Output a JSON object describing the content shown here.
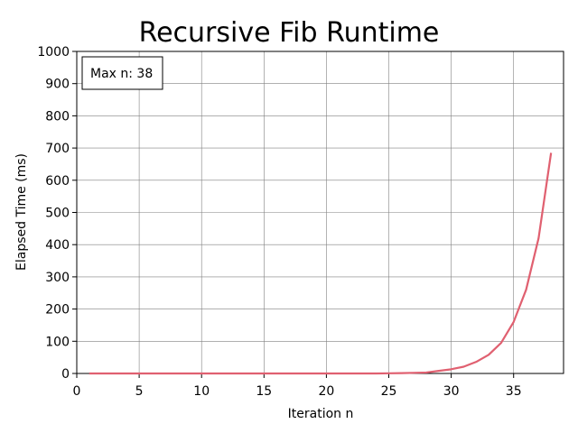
{
  "chart_data": {
    "type": "line",
    "title": "Recursive Fib Runtime",
    "xlabel": "Iteration n",
    "ylabel": "Elapsed Time (ms)",
    "xlim": [
      0,
      39
    ],
    "ylim": [
      0,
      1000
    ],
    "xticks": [
      0,
      5,
      10,
      15,
      20,
      25,
      30,
      35
    ],
    "yticks": [
      0,
      100,
      200,
      300,
      400,
      500,
      600,
      700,
      800,
      900,
      1000
    ],
    "grid": true,
    "annotation": "Max n: 38",
    "series": [
      {
        "color": "#e06070",
        "x": [
          1,
          2,
          3,
          4,
          5,
          6,
          7,
          8,
          9,
          10,
          11,
          12,
          13,
          14,
          15,
          16,
          17,
          18,
          19,
          20,
          21,
          22,
          23,
          24,
          25,
          26,
          27,
          28,
          29,
          30,
          31,
          32,
          33,
          34,
          35,
          36,
          37,
          38
        ],
        "y": [
          0,
          0,
          0,
          0,
          0,
          0,
          0,
          0,
          0,
          0,
          0,
          0,
          0,
          0,
          0,
          0,
          0,
          0,
          0,
          0,
          0,
          0,
          0,
          0,
          0.5,
          1,
          2,
          3,
          8,
          13,
          21,
          36,
          58,
          95,
          160,
          260,
          420,
          685
        ]
      }
    ]
  }
}
